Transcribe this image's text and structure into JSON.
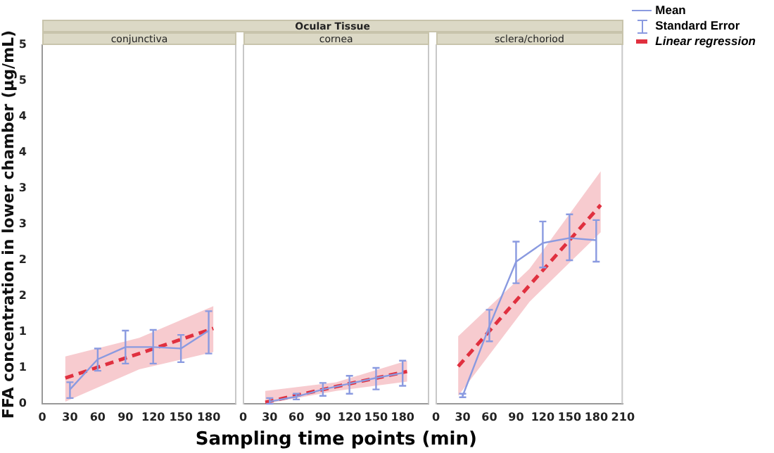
{
  "chart_data": [
    {
      "type": "line",
      "title": "conjunctiva",
      "ylabel": "FFA concentration in lower chamber (µg/mL)",
      "xlim": [
        0,
        210
      ],
      "xticks": [
        0,
        30,
        60,
        90,
        120,
        150,
        180
      ],
      "ylim": [
        0,
        5
      ],
      "yticks": [
        0,
        {
          "value": 0.5,
          "label": "1"
        },
        1,
        {
          "value": 1.5,
          "label": "2"
        },
        2,
        {
          "value": 2.5,
          "label": "3"
        },
        3,
        {
          "value": 3.5,
          "label": "4"
        },
        4,
        {
          "value": 4.5,
          "label": "5"
        },
        5
      ],
      "grid": false,
      "marker": "none",
      "series": [
        {
          "type": "line",
          "color": "#8a9ae0",
          "x": [
            30,
            60,
            90,
            120,
            150,
            180
          ],
          "values": [
            0.2,
            0.62,
            0.79,
            0.79,
            0.77,
            1.02
          ],
          "errors": [
            [
              0.08,
              0.3
            ],
            [
              0.46,
              0.77
            ],
            [
              0.56,
              1.02
            ],
            [
              0.56,
              1.03
            ],
            [
              0.58,
              0.96
            ],
            [
              0.7,
              1.29
            ]
          ]
        },
        {
          "type": "line",
          "line_style": "dashed",
          "color": "#e0303f",
          "x": [
            25,
            105,
            185
          ],
          "values": [
            0.36,
            0.7,
            1.05
          ],
          "lower": [
            0.03,
            0.48,
            0.72
          ],
          "upper": [
            0.66,
            0.92,
            1.36
          ]
        }
      ]
    },
    {
      "type": "line",
      "annotations": [
        "Ocular Tissue"
      ],
      "title": "cornea",
      "xlabel": "Sampling time points (min)",
      "xlim": [
        0,
        210
      ],
      "xticks": [
        0,
        30,
        60,
        90,
        120,
        150,
        180
      ],
      "ylim": [
        0,
        5
      ],
      "yticks": [
        0,
        0.5,
        1,
        1.5,
        2,
        2.5,
        3,
        3.5,
        4,
        4.5,
        5
      ],
      "tick_labels": "x",
      "grid": false,
      "marker": "none",
      "series": [
        {
          "type": "line",
          "color": "#8a9ae0",
          "x": [
            30,
            60,
            90,
            120,
            150,
            180
          ],
          "values": [
            0.03,
            0.1,
            0.2,
            0.28,
            0.36,
            0.43
          ],
          "errors": [
            [
              0.0,
              0.08
            ],
            [
              0.06,
              0.14
            ],
            [
              0.11,
              0.29
            ],
            [
              0.14,
              0.39
            ],
            [
              0.2,
              0.5
            ],
            [
              0.25,
              0.6
            ]
          ]
        },
        {
          "type": "line",
          "line_style": "dashed",
          "color": "#e0303f",
          "x": [
            25,
            105,
            185
          ],
          "values": [
            0.02,
            0.24,
            0.45
          ],
          "lower": [
            0,
            0.18,
            0.31
          ],
          "upper": [
            0.18,
            0.3,
            0.6
          ]
        }
      ]
    },
    {
      "type": "line",
      "annotations": [
        "Standard Error"
      ],
      "title": "sclera/choriod",
      "xlim": [
        0,
        210
      ],
      "xticks": [
        0,
        30,
        60,
        90,
        120,
        150,
        180,
        210
      ],
      "ylim": [
        0,
        5
      ],
      "yticks": [
        0,
        0.5,
        1,
        1.5,
        2,
        2.5,
        3,
        3.5,
        4,
        4.5,
        5
      ],
      "tick_labels": "x",
      "grid": false,
      "marker": "none",
      "legend": "right",
      "series": [
        {
          "name": "Mean",
          "type": "line",
          "color": "#8a9ae0",
          "x": [
            30,
            60,
            90,
            120,
            150,
            180
          ],
          "values": [
            0.11,
            1.08,
            1.98,
            2.24,
            2.31,
            2.28
          ],
          "errors": [
            [
              0.09,
              0.14
            ],
            [
              0.87,
              1.31
            ],
            [
              1.68,
              2.26
            ],
            [
              1.9,
              2.54
            ],
            [
              2.0,
              2.64
            ],
            [
              1.98,
              2.56
            ]
          ]
        },
        {
          "name": "Linear regression",
          "type": "line",
          "line_style": "dashed",
          "color": "#e0303f",
          "x": [
            25,
            105,
            185
          ],
          "values": [
            0.52,
            1.65,
            2.77
          ],
          "lower": [
            0.11,
            1.42,
            2.39
          ],
          "upper": [
            0.94,
            1.88,
            3.24
          ]
        }
      ]
    }
  ]
}
